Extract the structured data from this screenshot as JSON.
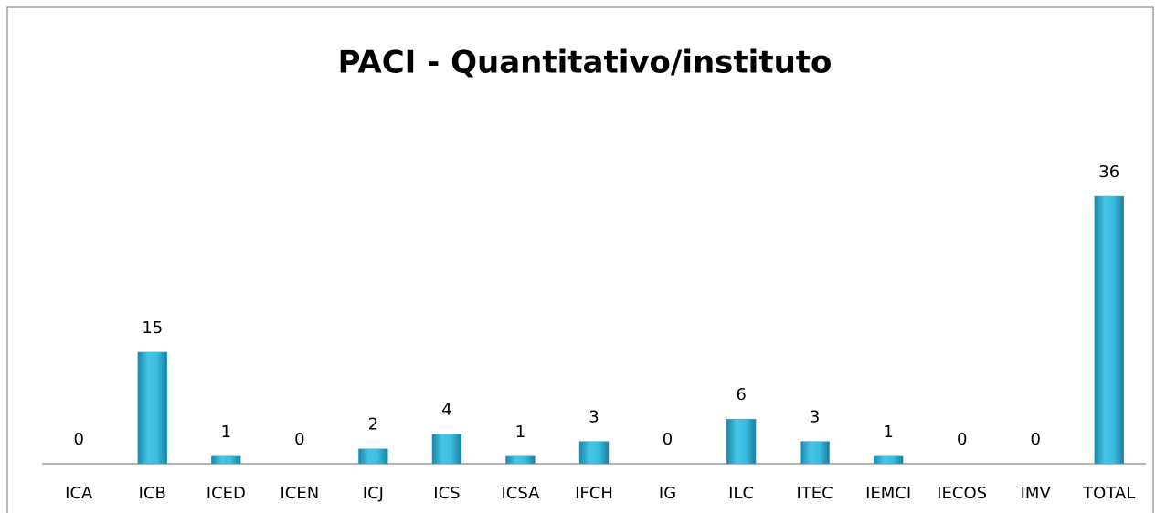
{
  "chart_data": {
    "type": "bar",
    "title": "PACI - Quantitativo/instituto",
    "categories": [
      "ICA",
      "ICB",
      "ICED",
      "ICEN",
      "ICJ",
      "ICS",
      "ICSA",
      "IFCH",
      "IG",
      "ILC",
      "ITEC",
      "IEMCI",
      "IECOS",
      "IMV",
      "TOTAL"
    ],
    "values": [
      0,
      15,
      1,
      0,
      2,
      4,
      1,
      3,
      0,
      6,
      3,
      1,
      0,
      0,
      36
    ],
    "color": "#31b2d6"
  }
}
